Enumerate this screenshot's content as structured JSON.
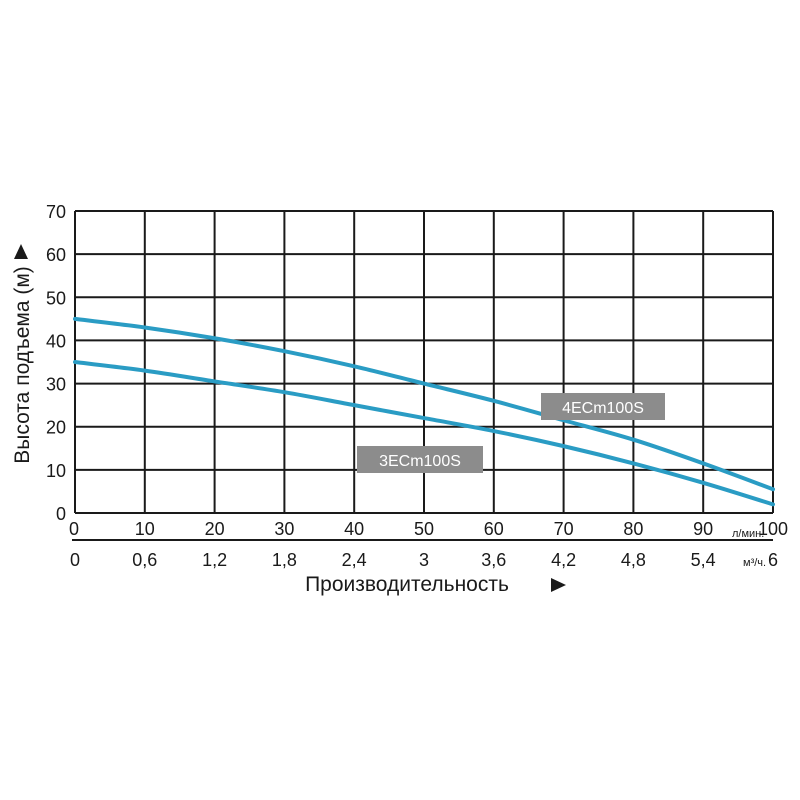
{
  "chart_data": {
    "type": "line",
    "ylabel": "Высота подъема (м)",
    "xlabel": "Производительность",
    "y_ticks": [
      "0",
      "10",
      "20",
      "30",
      "40",
      "50",
      "60",
      "70"
    ],
    "ylim": [
      0,
      70
    ],
    "x_primary": {
      "unit": "л/мин.",
      "ticks": [
        "0",
        "10",
        "20",
        "30",
        "40",
        "50",
        "60",
        "70",
        "80",
        "90",
        "100"
      ],
      "range": [
        0,
        100
      ]
    },
    "x_secondary": {
      "unit": "м³/ч.",
      "ticks": [
        "0",
        "0,6",
        "1,2",
        "1,8",
        "2,4",
        "3",
        "3,6",
        "4,2",
        "4,8",
        "5,4",
        "6"
      ]
    },
    "grid": true,
    "series": [
      {
        "name": "4ECm100S",
        "color": "#2a9cc4",
        "x": [
          0,
          10,
          20,
          30,
          40,
          50,
          60,
          70,
          80,
          90,
          100
        ],
        "y": [
          45,
          43,
          40.5,
          37.5,
          34,
          30,
          26,
          21.5,
          17,
          11.5,
          5.5
        ]
      },
      {
        "name": "3ECm100S",
        "color": "#2a9cc4",
        "x": [
          0,
          10,
          20,
          30,
          40,
          50,
          60,
          70,
          80,
          90,
          100
        ],
        "y": [
          35,
          33,
          30.5,
          28,
          25,
          22,
          19,
          15.5,
          11.5,
          7,
          2
        ]
      }
    ]
  }
}
